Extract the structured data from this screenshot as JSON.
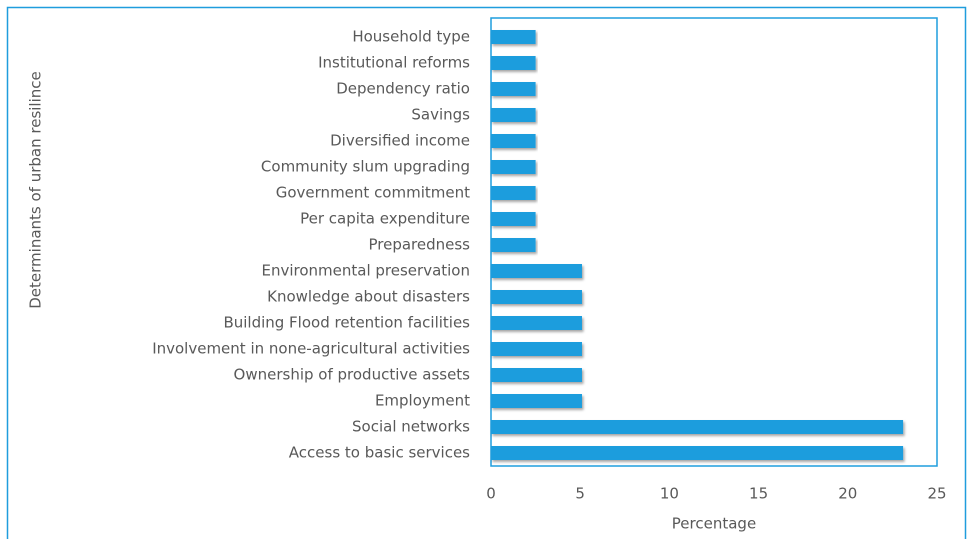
{
  "chart_data": {
    "type": "bar",
    "orientation": "horizontal",
    "x_axis_label": "Percentage",
    "y_axis_label": "Determinants of urban resilince",
    "categories": [
      "Household type",
      "Institutional reforms",
      "Dependency ratio",
      "Savings",
      "Diversified income",
      "Community slum upgrading",
      "Government commitment",
      "Per capita expenditure",
      "Preparedness",
      "Environmental preservation",
      "Knowledge about disasters",
      "Building Flood retention facilities",
      "Involvement in none-agricultural activities",
      "Ownership of productive assets",
      "Employment",
      "Social networks",
      "Access to basic services"
    ],
    "values": [
      2.5,
      2.5,
      2.5,
      2.5,
      2.5,
      2.5,
      2.5,
      2.5,
      2.5,
      5.1,
      5.1,
      5.1,
      5.1,
      5.1,
      5.1,
      23.1,
      23.1
    ],
    "color": "#1f9ddd",
    "xlim": [
      0,
      25
    ],
    "xticks": [
      0,
      5,
      10,
      15,
      20,
      25
    ],
    "grid": false
  }
}
